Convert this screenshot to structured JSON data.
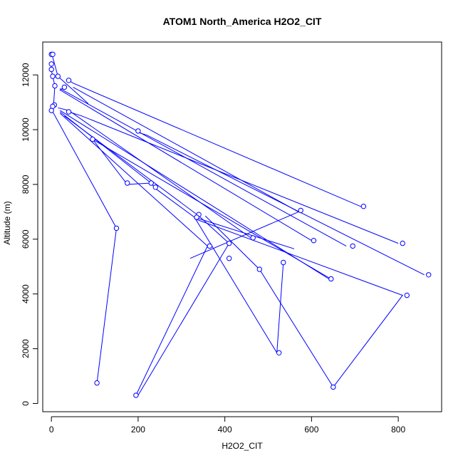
{
  "chart_data": {
    "type": "line",
    "title": "ATOM1 North_America H2O2_CIT",
    "xlabel": "H2O2_CIT",
    "ylabel": "Altitude (m)",
    "xlim": [
      -20,
      900
    ],
    "ylim": [
      -300,
      13200
    ],
    "xticks": [
      0,
      200,
      400,
      600,
      800
    ],
    "yticks": [
      0,
      2000,
      4000,
      6000,
      8000,
      10000,
      12000
    ],
    "grid": false,
    "legend": "none",
    "series_color": "#0000ff",
    "segments": [
      {
        "points": [
          [
            0,
            12700
          ],
          [
            2,
            12700
          ],
          [
            15,
            11950
          ],
          [
            85,
            10950
          ]
        ]
      },
      {
        "points": [
          [
            0,
            12400
          ],
          [
            0,
            12150
          ],
          [
            3,
            11950
          ],
          [
            8,
            11600
          ],
          [
            5,
            10900
          ],
          [
            10,
            10900
          ]
        ]
      },
      {
        "points": [
          [
            40,
            11800
          ],
          [
            50,
            11700
          ],
          [
            720,
            7150
          ]
        ]
      },
      {
        "points": [
          [
            30,
            11550
          ],
          [
            20,
            11450
          ],
          [
            600,
            5950
          ]
        ]
      },
      {
        "points": [
          [
            50,
            11550
          ],
          [
            570,
            7000
          ],
          [
            320,
            5300
          ]
        ]
      },
      {
        "points": [
          [
            20,
            11500
          ],
          [
            680,
            5750
          ]
        ]
      },
      {
        "points": [
          [
            40,
            10650
          ],
          [
            70,
            10500
          ],
          [
            800,
            5850
          ]
        ]
      },
      {
        "points": [
          [
            0,
            10700
          ],
          [
            5,
            10600
          ],
          [
            150,
            6400
          ],
          [
            105,
            750
          ]
        ]
      },
      {
        "points": [
          [
            15,
            10800
          ],
          [
            40,
            10700
          ],
          [
            460,
            6050
          ]
        ]
      },
      {
        "points": [
          [
            20,
            10700
          ],
          [
            640,
            4550
          ]
        ]
      },
      {
        "points": [
          [
            20,
            10650
          ],
          [
            230,
            8050
          ],
          [
            240,
            7850
          ],
          [
            330,
            6800
          ],
          [
            520,
            1850
          ],
          [
            535,
            5150
          ]
        ]
      },
      {
        "points": [
          [
            20,
            10600
          ],
          [
            360,
            5750
          ],
          [
            195,
            300
          ]
        ]
      },
      {
        "points": [
          [
            30,
            10500
          ],
          [
            340,
            6850
          ],
          [
            410,
            5850
          ],
          [
            200,
            300
          ]
        ]
      },
      {
        "points": [
          [
            95,
            9650
          ],
          [
            175,
            8000
          ],
          [
            230,
            8050
          ]
        ]
      },
      {
        "points": [
          [
            200,
            9900
          ],
          [
            220,
            9800
          ],
          [
            860,
            4700
          ]
        ]
      },
      {
        "points": [
          [
            100,
            9600
          ],
          [
            650,
            4500
          ]
        ]
      },
      {
        "points": [
          [
            330,
            6750
          ],
          [
            810,
            3950
          ],
          [
            650,
            600
          ]
        ]
      },
      {
        "points": [
          [
            355,
            6850
          ],
          [
            480,
            4900
          ],
          [
            650,
            600
          ]
        ]
      },
      {
        "points": [
          [
            330,
            6800
          ],
          [
            560,
            5650
          ]
        ]
      }
    ],
    "markers": [
      [
        0,
        12750
      ],
      [
        3,
        12750
      ],
      [
        0,
        12400
      ],
      [
        0,
        12200
      ],
      [
        3,
        11950
      ],
      [
        15,
        11950
      ],
      [
        40,
        11800
      ],
      [
        30,
        11550
      ],
      [
        8,
        11600
      ],
      [
        7,
        10900
      ],
      [
        3,
        10850
      ],
      [
        0,
        10700
      ],
      [
        40,
        10650
      ],
      [
        95,
        9650
      ],
      [
        200,
        9950
      ],
      [
        175,
        8050
      ],
      [
        230,
        8050
      ],
      [
        240,
        7900
      ],
      [
        720,
        7200
      ],
      [
        575,
        7050
      ],
      [
        340,
        6900
      ],
      [
        335,
        6800
      ],
      [
        150,
        6400
      ],
      [
        465,
        6050
      ],
      [
        605,
        5950
      ],
      [
        810,
        5850
      ],
      [
        695,
        5750
      ],
      [
        365,
        5750
      ],
      [
        410,
        5850
      ],
      [
        410,
        5300
      ],
      [
        535,
        5150
      ],
      [
        480,
        4900
      ],
      [
        870,
        4700
      ],
      [
        645,
        4550
      ],
      [
        820,
        3950
      ],
      [
        525,
        1850
      ],
      [
        105,
        750
      ],
      [
        650,
        600
      ],
      [
        195,
        300
      ]
    ]
  }
}
